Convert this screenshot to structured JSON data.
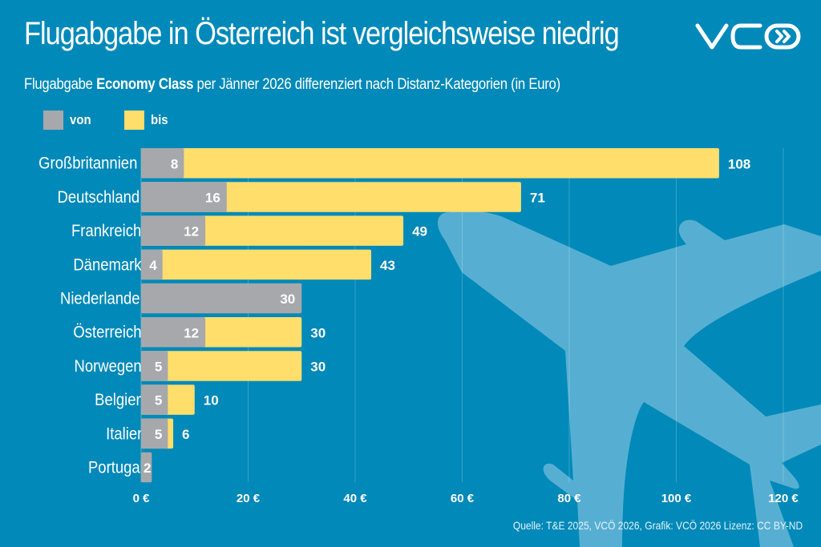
{
  "header": {
    "title": "Flugabgabe in Österreich ist vergleichsweise niedrig",
    "subtitle_pre": "Flugabgabe ",
    "subtitle_bold": "Economy Class",
    "subtitle_post": " per Jänner 2026 differenziert nach Distanz-Kategorien (in Euro)",
    "logo_text": "VCÖ",
    "logo_icon": "double-chevron-right-icon"
  },
  "colors": {
    "background": "#0089b9",
    "von": "#a7a8ab",
    "bis": "#ffde6b",
    "plane": "#56afd2",
    "text": "#ffffff"
  },
  "legend": [
    {
      "key": "von",
      "label": "von",
      "color": "#a7a8ab"
    },
    {
      "key": "bis",
      "label": "bis",
      "color": "#ffde6b"
    }
  ],
  "decoration": {
    "background_icon": "airplane-icon"
  },
  "source": "Quelle: T&E 2025, VCÖ 2026, Grafik: VCÖ 2026 Lizenz: CC BY-ND",
  "chart_data": {
    "type": "bar",
    "orientation": "horizontal",
    "title": "Flugabgabe in Österreich ist vergleichsweise niedrig",
    "subtitle": "Flugabgabe Economy Class per Jänner 2026 differenziert nach Distanz-Kategorien (in Euro)",
    "xlabel": "",
    "ylabel": "",
    "xlim": [
      0,
      120
    ],
    "x_ticks": [
      0,
      20,
      40,
      60,
      80,
      100,
      120
    ],
    "x_tick_labels": [
      "0 €",
      "20 €",
      "40 €",
      "60 €",
      "80 €",
      "100 €",
      "120 €"
    ],
    "grid": true,
    "legend_position": "top-left",
    "categories": [
      "Großbritannien",
      "Deutschland",
      "Frankreich",
      "Dänemark",
      "Niederlande",
      "Österreich",
      "Norwegen",
      "Belgien",
      "Italien",
      "Portugal"
    ],
    "series": [
      {
        "name": "von",
        "values": [
          8,
          16,
          12,
          4,
          30,
          12,
          5,
          5,
          5,
          2
        ]
      },
      {
        "name": "bis",
        "values": [
          108,
          71,
          49,
          43,
          null,
          30,
          30,
          10,
          6,
          null
        ]
      }
    ]
  }
}
